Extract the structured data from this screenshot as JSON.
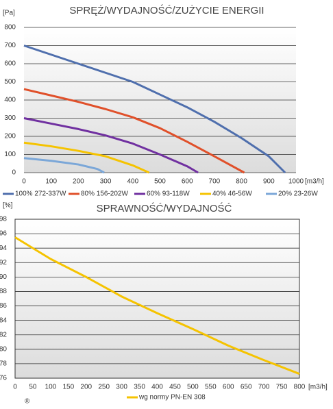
{
  "chart_data": [
    {
      "type": "line",
      "title": "SPRĘŻ/WYDAJNOŚĆ/ZUŻYCIE ENERGII",
      "y_label": "[Pa]",
      "x_label": "[m3/h]",
      "xlim": [
        0,
        1000
      ],
      "xticks": [
        0,
        100,
        200,
        300,
        400,
        500,
        600,
        700,
        800,
        900,
        1000
      ],
      "ylim": [
        0,
        800
      ],
      "yticks": [
        0,
        100,
        200,
        300,
        400,
        500,
        600,
        700,
        800
      ],
      "grid": true,
      "series": [
        {
          "name": "100% 272-337W",
          "color": "#4f6fad",
          "x": [
            0,
            100,
            200,
            300,
            400,
            500,
            600,
            700,
            800,
            900,
            960
          ],
          "values": [
            700,
            650,
            600,
            550,
            500,
            430,
            360,
            280,
            190,
            90,
            0
          ]
        },
        {
          "name": "80% 156-202W",
          "color": "#e0502a",
          "x": [
            0,
            100,
            200,
            300,
            400,
            500,
            600,
            700,
            810
          ],
          "values": [
            460,
            425,
            390,
            350,
            305,
            245,
            170,
            90,
            0
          ]
        },
        {
          "name": "60% 93-118W",
          "color": "#7030a0",
          "x": [
            0,
            100,
            200,
            300,
            400,
            500,
            600,
            640
          ],
          "values": [
            300,
            270,
            240,
            205,
            160,
            100,
            35,
            0
          ]
        },
        {
          "name": "40% 46-56W",
          "color": "#f5c300",
          "x": [
            0,
            100,
            200,
            300,
            400,
            460
          ],
          "values": [
            165,
            145,
            120,
            90,
            40,
            0
          ]
        },
        {
          "name": "20% 23-26W",
          "color": "#7ba7d8",
          "x": [
            0,
            100,
            200,
            270,
            295
          ],
          "values": [
            80,
            65,
            45,
            20,
            0
          ]
        }
      ]
    },
    {
      "type": "line",
      "title": "SPRAWNOŚĆ/WYDAJNOŚĆ",
      "y_label": "[%]",
      "x_label": "[m3/h]",
      "footnote": "®",
      "xlim": [
        0,
        800
      ],
      "xticks": [
        0,
        50,
        100,
        150,
        200,
        250,
        300,
        350,
        400,
        450,
        500,
        550,
        600,
        650,
        700,
        750,
        800
      ],
      "ylim": [
        76,
        98
      ],
      "yticks": [
        76,
        78,
        80,
        82,
        84,
        86,
        88,
        90,
        92,
        94,
        96,
        98
      ],
      "grid": true,
      "series": [
        {
          "name": "wg normy PN-EN 308",
          "color": "#f5c300",
          "x": [
            0,
            100,
            200,
            300,
            400,
            500,
            600,
            700,
            800
          ],
          "values": [
            95.5,
            92.5,
            90,
            87.3,
            85,
            82.8,
            80.5,
            78.5,
            76.6
          ]
        }
      ]
    }
  ]
}
